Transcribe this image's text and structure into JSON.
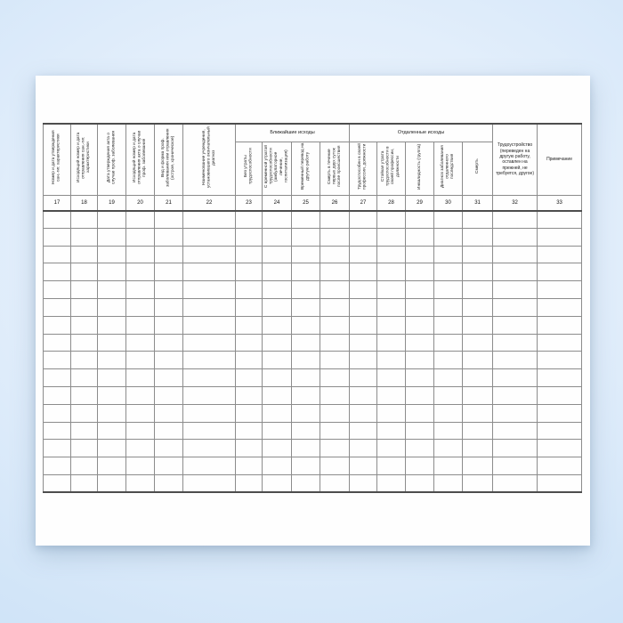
{
  "page": {
    "background_color": "#d4e6f8",
    "paper_color": "#fefefe",
    "line_color": "#8c8c8c",
    "heavy_line_color": "#4d4d4d"
  },
  "table": {
    "group_headers": [
      {
        "label": "Ближайшие исходы",
        "columns": "23–26"
      },
      {
        "label": "Отдаленные исходы",
        "columns": "27–31"
      }
    ],
    "columns": [
      {
        "number": "17",
        "label": "Номер и дата утверждения сан.-гиг. характеристики",
        "orientation": "vertical"
      },
      {
        "number": "18",
        "label": "Исходящий номер и дата отправления сан.-гиг. характеристики",
        "orientation": "vertical"
      },
      {
        "number": "19",
        "label": "Дата утверждения акта о случае проф. заболевания",
        "orientation": "vertical"
      },
      {
        "number": "20",
        "label": "Исходящий номер и дата отправления акта о случае проф. заболевания",
        "orientation": "vertical"
      },
      {
        "number": "21",
        "label": "Вид и форма проф. заболевания или отравления (острое, хроническое)",
        "orientation": "vertical"
      },
      {
        "number": "22",
        "label": "Наименование учреждения, установившего окончательный диагноз",
        "orientation": "vertical"
      },
      {
        "number": "23",
        "label": "Без утраты трудоспособности",
        "orientation": "vertical",
        "group": "Ближайшие исходы"
      },
      {
        "number": "24",
        "label": "С временной утратой трудоспособности (амбулаторное лечение, госпитализация)",
        "orientation": "vertical",
        "group": "Ближайшие исходы"
      },
      {
        "number": "25",
        "label": "Временный перевод на другую работу",
        "orientation": "vertical",
        "group": "Ближайшие исходы"
      },
      {
        "number": "26",
        "label": "Смерть в течение первых двух суток после происшествия",
        "orientation": "vertical",
        "group": "Ближайшие исходы"
      },
      {
        "number": "27",
        "label": "Трудоспособен в своей профессии, должности",
        "orientation": "vertical",
        "group": "Отдаленные исходы"
      },
      {
        "number": "28",
        "label": "Стойкая утрата трудоспособности в своей профессии, должности",
        "orientation": "vertical",
        "group": "Отдаленные исходы"
      },
      {
        "number": "29",
        "label": "Инвалидность (группа)",
        "orientation": "vertical",
        "group": "Отдаленные исходы"
      },
      {
        "number": "30",
        "label": "Диагноз заболевания отдаленного последствия",
        "orientation": "vertical",
        "group": "Отдаленные исходы"
      },
      {
        "number": "31",
        "label": "Смерть",
        "orientation": "vertical",
        "group": "Отдаленные исходы"
      },
      {
        "number": "32",
        "label": "Трудоустройство (переведен на другую работу, оставлен на прежней, не требуется, другое)",
        "orientation": "horizontal"
      },
      {
        "number": "33",
        "label": "Примечание",
        "orientation": "horizontal"
      }
    ],
    "blank_row_count": 16
  }
}
